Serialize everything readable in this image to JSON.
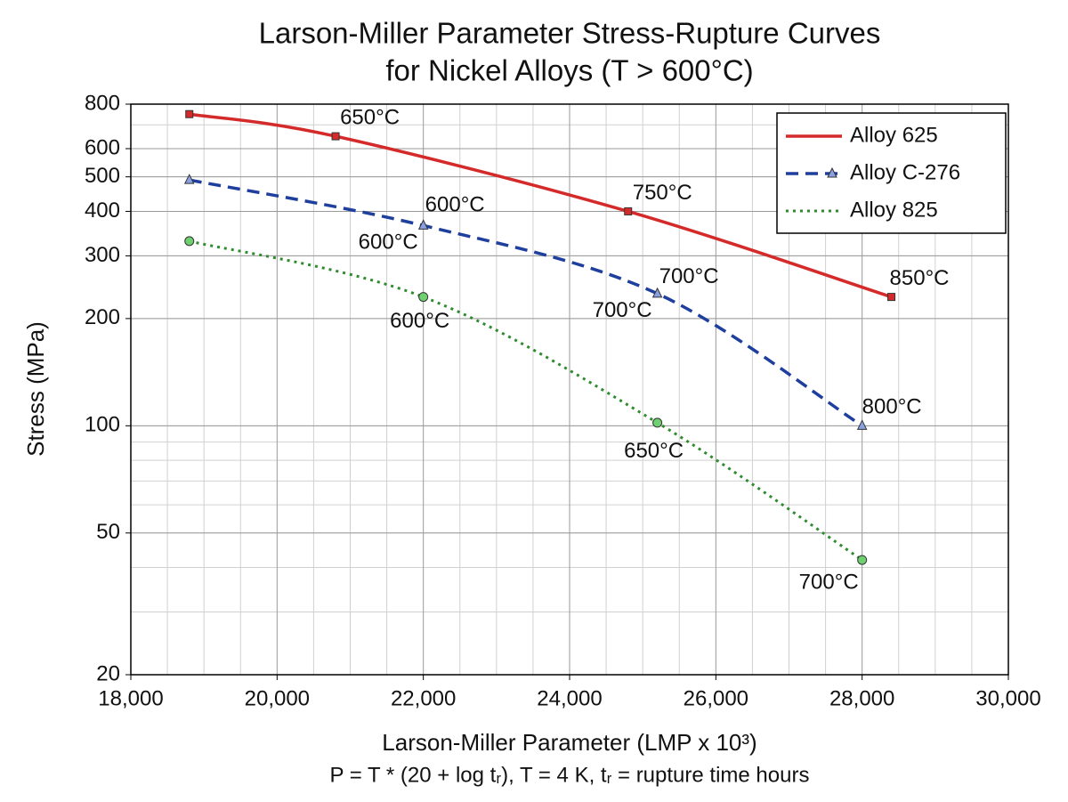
{
  "chart_data": {
    "type": "line",
    "title": [
      "Larson-Miller Parameter Stress-Rupture Curves",
      "for Nickel Alloys (T > 600°C)"
    ],
    "xlabel": "Larson-Miller Parameter (LMP x 10³)",
    "subtitle": "P = T * (20 + log tᵣ), T = 4 K, tᵣ = rupture time hours",
    "ylabel": "Stress (MPa)",
    "xlim": [
      18000,
      30000
    ],
    "xticks": [
      {
        "value": 18000,
        "label": "18,000"
      },
      {
        "value": 20000,
        "label": "20,000"
      },
      {
        "value": 22000,
        "label": "22,000"
      },
      {
        "value": 24000,
        "label": "24,000"
      },
      {
        "value": 26000,
        "label": "26,000"
      },
      {
        "value": 28000,
        "label": "28,000"
      },
      {
        "value": 30000,
        "label": "30,000"
      }
    ],
    "ylim": [
      20,
      800
    ],
    "yticks": [
      20,
      50,
      100,
      200,
      300,
      400,
      500,
      600,
      800
    ],
    "log_y": true,
    "grid": true,
    "legend": "upper right",
    "series": [
      {
        "name": "Alloy 625",
        "color": "#d42a2a",
        "style": "solid",
        "marker": "square",
        "x": [
          18800,
          20800,
          24800,
          28400
        ],
        "values": [
          750,
          650,
          400,
          230
        ]
      },
      {
        "name": "Alloy C-276",
        "color": "#1f3f9e",
        "style": "dashed",
        "marker": "triangle",
        "x": [
          18800,
          22000,
          25200,
          28000
        ],
        "values": [
          490,
          365,
          235,
          100
        ]
      },
      {
        "name": "Alloy 825",
        "color": "#2e8b2e",
        "style": "dotted",
        "marker": "circle",
        "x": [
          18800,
          22000,
          25200,
          28000
        ],
        "values": [
          330,
          230,
          102,
          42
        ]
      }
    ],
    "annotations": [
      {
        "text": "650°C",
        "x": 20800,
        "y": 650
      },
      {
        "text": "750°C",
        "x": 24800,
        "y": 400
      },
      {
        "text": "850°C",
        "x": 28400,
        "y": 230
      },
      {
        "text": "600°C",
        "x": 22000,
        "y": 365
      },
      {
        "text": "600°C",
        "x": 22000,
        "y": 365
      },
      {
        "text": "700°C",
        "x": 25200,
        "y": 235
      },
      {
        "text": "700°C",
        "x": 25200,
        "y": 235
      },
      {
        "text": "800°C",
        "x": 28000,
        "y": 100
      },
      {
        "text": "600°C",
        "x": 22000,
        "y": 230
      },
      {
        "text": "650°C",
        "x": 25200,
        "y": 102
      },
      {
        "text": "700°C",
        "x": 28000,
        "y": 42
      }
    ]
  }
}
